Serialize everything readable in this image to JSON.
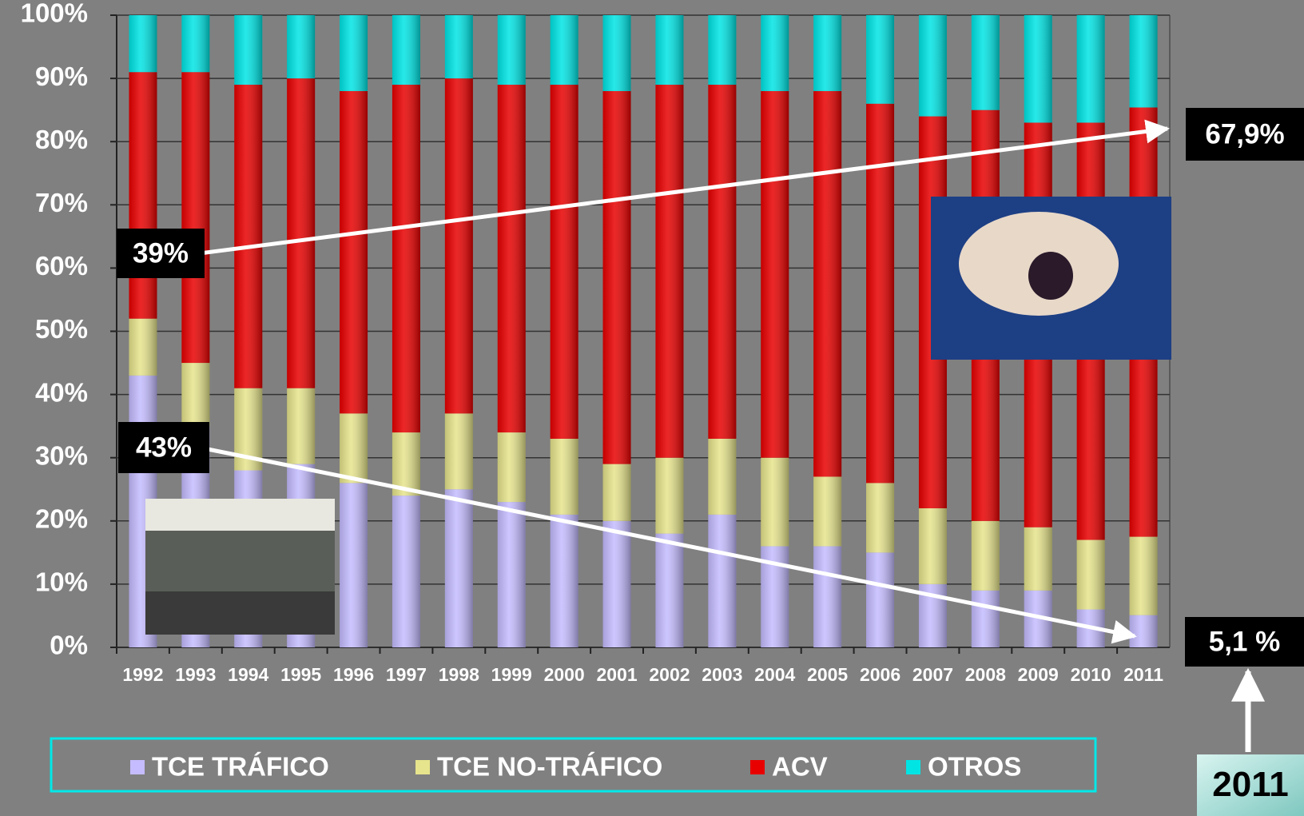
{
  "chart_data": {
    "type": "stacked_bar",
    "categories": [
      "1992",
      "1993",
      "1994",
      "1995",
      "1996",
      "1997",
      "1998",
      "1999",
      "2000",
      "2001",
      "2002",
      "2003",
      "2004",
      "2005",
      "2006",
      "2007",
      "2008",
      "2009",
      "2010",
      "2011"
    ],
    "series": [
      {
        "name": "TCE TRÁFICO",
        "color": "#c4bcff",
        "values": [
          43,
          35,
          28,
          29,
          26,
          24,
          25,
          23,
          21,
          20,
          18,
          21,
          16,
          16,
          15,
          10,
          9,
          9,
          6,
          5.1
        ]
      },
      {
        "name": "TCE NO-TRÁFICO",
        "color": "#e6e48c",
        "values": [
          9,
          10,
          13,
          12,
          11,
          10,
          12,
          11,
          12,
          9,
          12,
          12,
          14,
          11,
          11,
          12,
          11,
          10,
          11,
          12.4
        ]
      },
      {
        "name": "ACV",
        "color": "#e80000",
        "values": [
          39,
          46,
          48,
          49,
          51,
          55,
          53,
          55,
          56,
          59,
          59,
          56,
          58,
          61,
          60,
          62,
          65,
          64,
          66,
          67.9
        ]
      },
      {
        "name": "OTROS",
        "color": "#00e4e4",
        "values": [
          9,
          9,
          11,
          10,
          12,
          11,
          10,
          11,
          11,
          12,
          11,
          11,
          12,
          12,
          14,
          16,
          15,
          17,
          17,
          14.6
        ]
      }
    ],
    "ylim": [
      0,
      100
    ],
    "yticks": [
      {
        "value": 0,
        "label": "0%"
      },
      {
        "value": 10,
        "label": "10%"
      },
      {
        "value": 20,
        "label": "20%"
      },
      {
        "value": 30,
        "label": "30%"
      },
      {
        "value": 40,
        "label": "40%"
      },
      {
        "value": 50,
        "label": "50%"
      },
      {
        "value": 60,
        "label": "60%"
      },
      {
        "value": 70,
        "label": "70%"
      },
      {
        "value": 80,
        "label": "80%"
      },
      {
        "value": 90,
        "label": "90%"
      },
      {
        "value": 100,
        "label": "100%"
      }
    ],
    "grid": true,
    "annotations": [
      "67,9%",
      "39%",
      "43%",
      "5,1 %",
      "2011"
    ]
  }
}
